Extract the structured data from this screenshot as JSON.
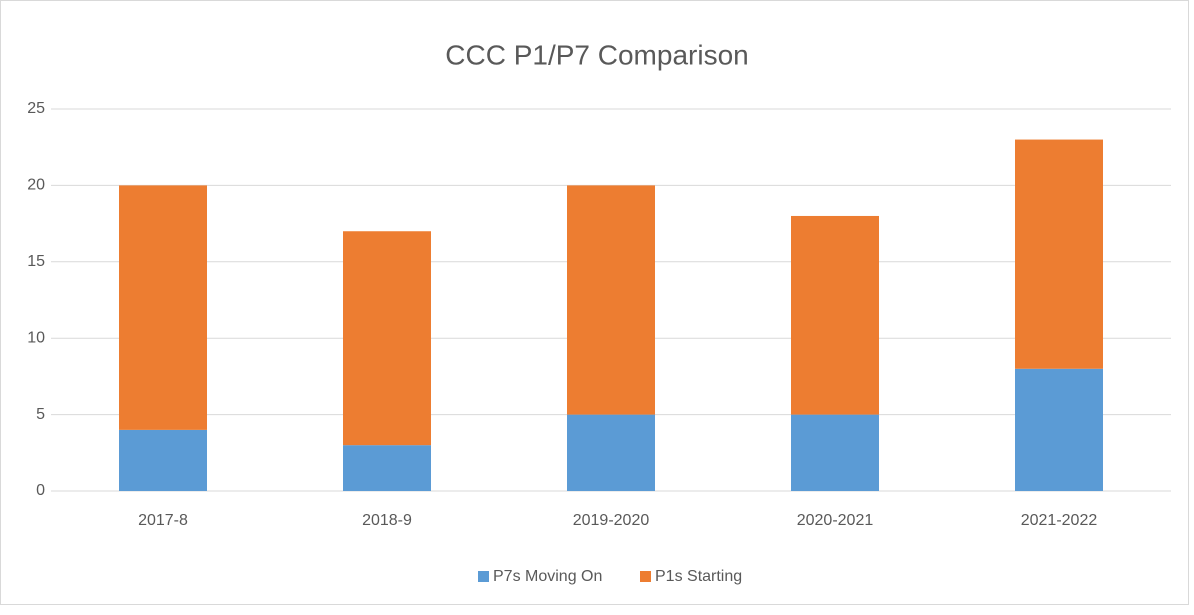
{
  "chart_data": {
    "type": "stacked_bar",
    "title": "CCC P1/P7 Comparison",
    "categories": [
      "2017-8",
      "2018-9",
      "2019-2020",
      "2020-2021",
      "2021-2022"
    ],
    "series": [
      {
        "name": "P7s Moving On",
        "color": "#5b9bd5",
        "values": [
          4,
          3,
          5,
          5,
          8
        ]
      },
      {
        "name": "P1s Starting",
        "color": "#ed7d31",
        "values": [
          16,
          14,
          15,
          13,
          15
        ]
      }
    ],
    "ylim": [
      0,
      25
    ],
    "yticks": [
      0,
      5,
      10,
      15,
      20,
      25
    ],
    "grid": true,
    "legend": "bottom"
  }
}
